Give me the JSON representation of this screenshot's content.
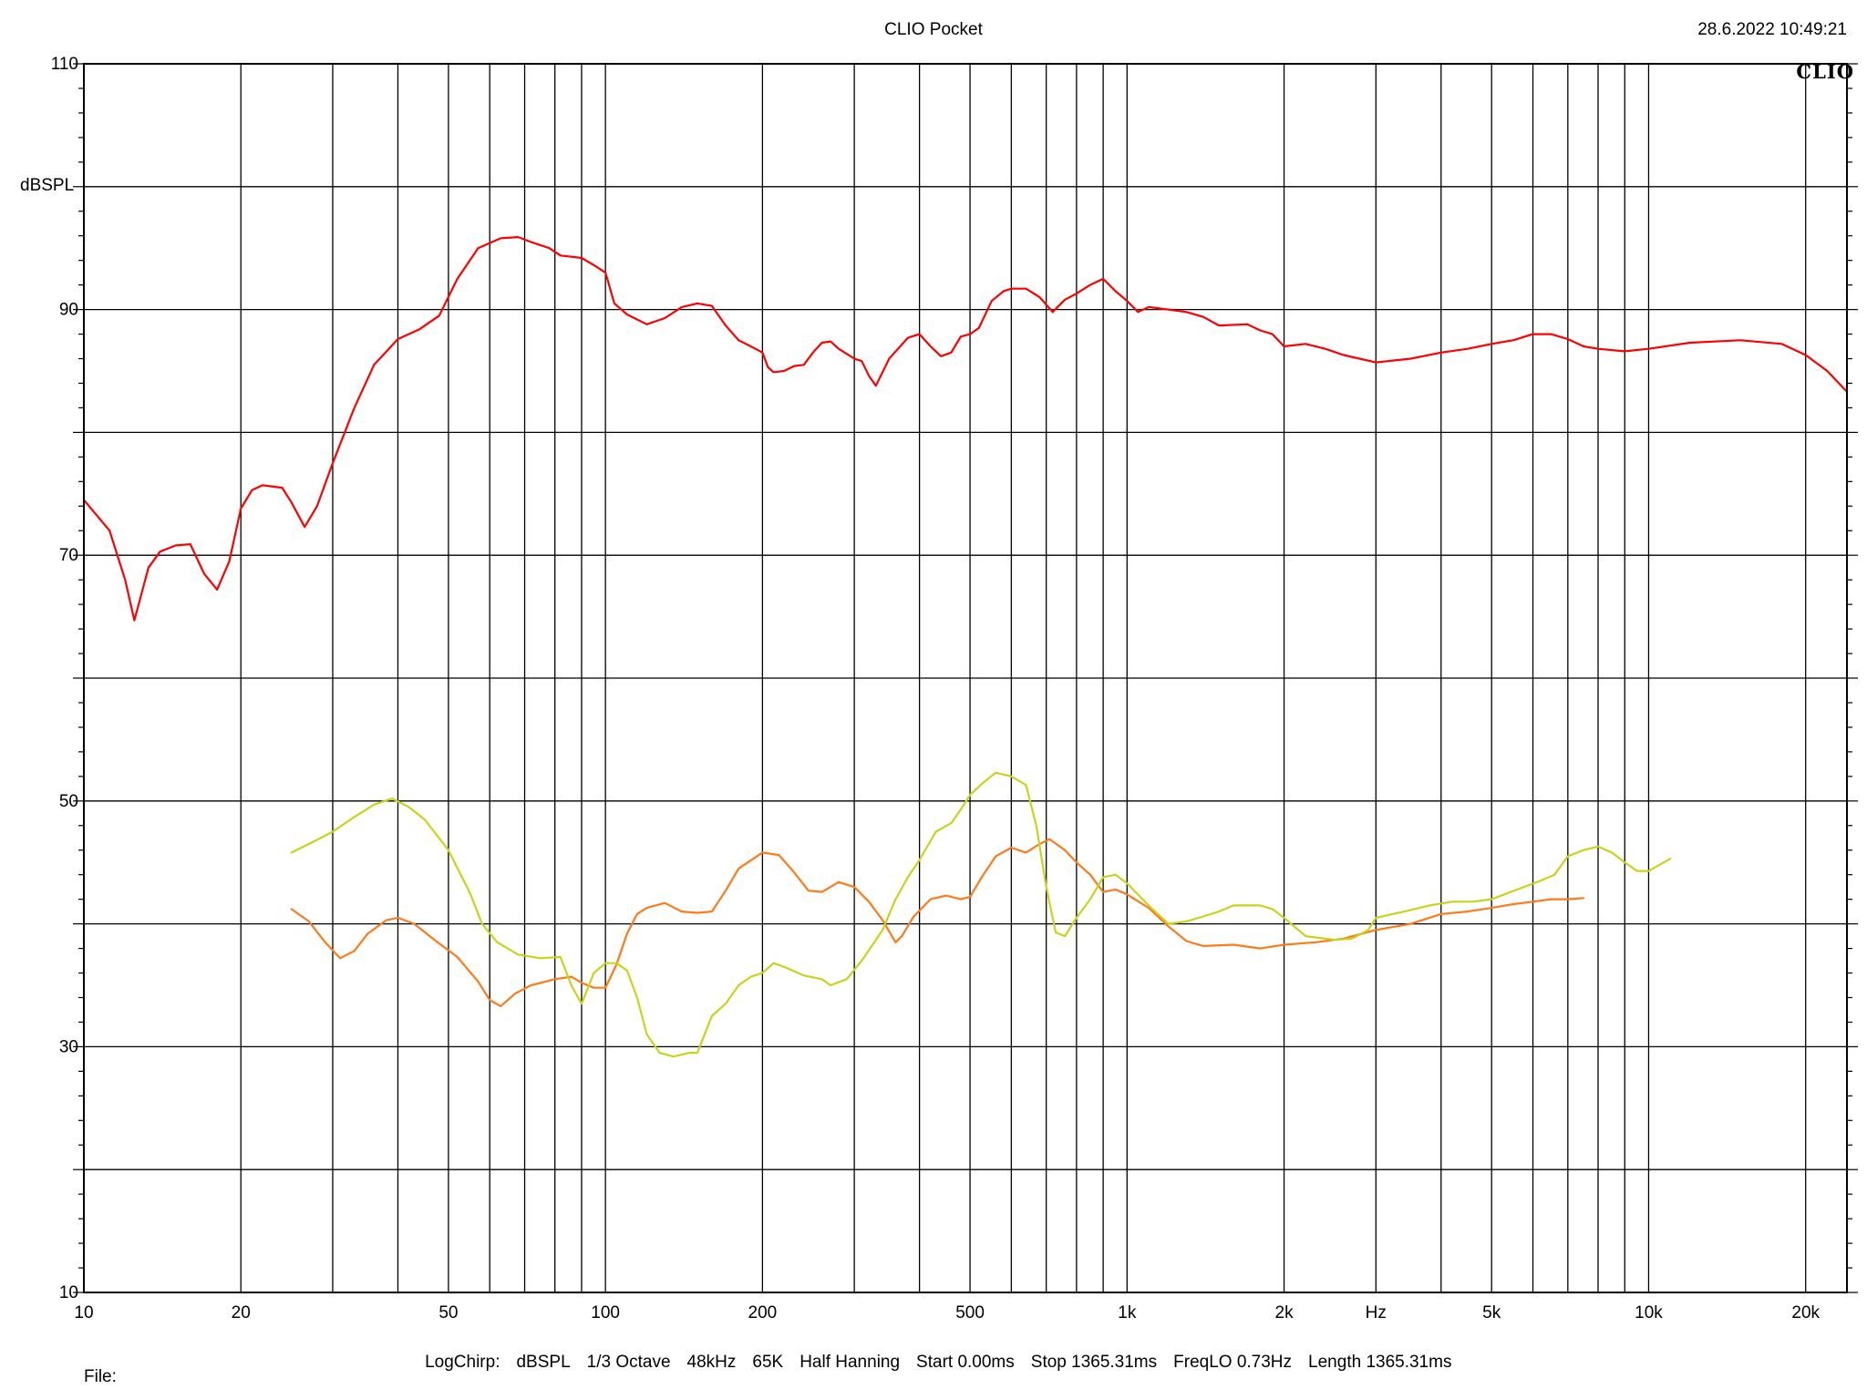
{
  "header": {
    "title": "CLIO Pocket",
    "timestamp": "28.6.2022 10:49:21",
    "brand": "CLIO"
  },
  "footer": {
    "items": [
      "LogChirp:",
      "dBSPL",
      "1/3 Octave",
      "48kHz",
      "65K",
      "Half Hanning",
      "Start 0.00ms",
      "Stop 1365.31ms",
      "FreqLO 0.73Hz",
      "Length 1365.31ms"
    ],
    "file_label": "File:"
  },
  "chart_data": {
    "type": "line",
    "title": "CLIO Pocket",
    "xlabel": "Hz",
    "ylabel": "dBSPL",
    "x_scale": "log",
    "xlim": [
      10,
      24000
    ],
    "ylim": [
      10,
      110
    ],
    "grid": true,
    "x_ticks": [
      {
        "value": 10,
        "label": "10"
      },
      {
        "value": 20,
        "label": "20"
      },
      {
        "value": 50,
        "label": "50"
      },
      {
        "value": 100,
        "label": "100"
      },
      {
        "value": 200,
        "label": "200"
      },
      {
        "value": 500,
        "label": "500"
      },
      {
        "value": 1000,
        "label": "1k"
      },
      {
        "value": 2000,
        "label": "2k"
      },
      {
        "value": 5000,
        "label": "5k"
      },
      {
        "value": 10000,
        "label": "10k"
      },
      {
        "value": 20000,
        "label": "20k"
      }
    ],
    "y_ticks": [
      {
        "value": 10,
        "label": "10"
      },
      {
        "value": 30,
        "label": "30"
      },
      {
        "value": 50,
        "label": "50"
      },
      {
        "value": 70,
        "label": "70"
      },
      {
        "value": 90,
        "label": "90"
      },
      {
        "value": 110,
        "label": "110"
      }
    ],
    "series": [
      {
        "color": "#ff0000",
        "points": [
          [
            10,
            74.5
          ],
          [
            11.2,
            72
          ],
          [
            12,
            68
          ],
          [
            12.5,
            64.7
          ],
          [
            13.3,
            69
          ],
          [
            14,
            70.3
          ],
          [
            15,
            70.8
          ],
          [
            16,
            70.9
          ],
          [
            17,
            68.5
          ],
          [
            18,
            67.2
          ],
          [
            19,
            69.5
          ],
          [
            20,
            73.8
          ],
          [
            21,
            75.3
          ],
          [
            22,
            75.7
          ],
          [
            24,
            75.5
          ],
          [
            25,
            74.3
          ],
          [
            26.5,
            72.3
          ],
          [
            28,
            74
          ],
          [
            30,
            77.5
          ],
          [
            33,
            82
          ],
          [
            36,
            85.5
          ],
          [
            40,
            87.6
          ],
          [
            44,
            88.4
          ],
          [
            48,
            89.5
          ],
          [
            52,
            92.5
          ],
          [
            57,
            95
          ],
          [
            63,
            95.8
          ],
          [
            68,
            95.9
          ],
          [
            72,
            95.5
          ],
          [
            78,
            95
          ],
          [
            82,
            94.4
          ],
          [
            90,
            94.2
          ],
          [
            96,
            93.5
          ],
          [
            100,
            93
          ],
          [
            104,
            90.5
          ],
          [
            110,
            89.6
          ],
          [
            120,
            88.8
          ],
          [
            130,
            89.3
          ],
          [
            140,
            90.2
          ],
          [
            150,
            90.5
          ],
          [
            160,
            90.3
          ],
          [
            170,
            88.7
          ],
          [
            180,
            87.5
          ],
          [
            190,
            87
          ],
          [
            200,
            86.5
          ],
          [
            205,
            85.3
          ],
          [
            210,
            84.9
          ],
          [
            220,
            85
          ],
          [
            230,
            85.4
          ],
          [
            240,
            85.5
          ],
          [
            250,
            86.5
          ],
          [
            260,
            87.3
          ],
          [
            270,
            87.4
          ],
          [
            280,
            86.8
          ],
          [
            300,
            86
          ],
          [
            310,
            85.8
          ],
          [
            320,
            84.6
          ],
          [
            330,
            83.8
          ],
          [
            350,
            86
          ],
          [
            380,
            87.7
          ],
          [
            400,
            88
          ],
          [
            420,
            87
          ],
          [
            440,
            86.2
          ],
          [
            460,
            86.5
          ],
          [
            480,
            87.8
          ],
          [
            500,
            88
          ],
          [
            520,
            88.5
          ],
          [
            550,
            90.7
          ],
          [
            580,
            91.5
          ],
          [
            600,
            91.7
          ],
          [
            640,
            91.7
          ],
          [
            680,
            91
          ],
          [
            720,
            89.8
          ],
          [
            760,
            90.8
          ],
          [
            800,
            91.3
          ],
          [
            850,
            92
          ],
          [
            900,
            92.5
          ],
          [
            950,
            91.5
          ],
          [
            1000,
            90.7
          ],
          [
            1050,
            89.8
          ],
          [
            1100,
            90.2
          ],
          [
            1200,
            90
          ],
          [
            1300,
            89.8
          ],
          [
            1400,
            89.4
          ],
          [
            1500,
            88.7
          ],
          [
            1700,
            88.8
          ],
          [
            1800,
            88.3
          ],
          [
            1900,
            88
          ],
          [
            2000,
            87
          ],
          [
            2200,
            87.2
          ],
          [
            2400,
            86.8
          ],
          [
            2600,
            86.3
          ],
          [
            3000,
            85.7
          ],
          [
            3500,
            86
          ],
          [
            4000,
            86.5
          ],
          [
            4500,
            86.8
          ],
          [
            5000,
            87.2
          ],
          [
            5500,
            87.5
          ],
          [
            6000,
            88
          ],
          [
            6500,
            88
          ],
          [
            7000,
            87.6
          ],
          [
            7500,
            87
          ],
          [
            8000,
            86.8
          ],
          [
            9000,
            86.6
          ],
          [
            10000,
            86.8
          ],
          [
            12000,
            87.3
          ],
          [
            15000,
            87.5
          ],
          [
            18000,
            87.2
          ],
          [
            20000,
            86.3
          ],
          [
            22000,
            85
          ],
          [
            24000,
            83.3
          ]
        ]
      },
      {
        "color": "#ff7a1a",
        "points": [
          [
            25,
            41.2
          ],
          [
            27,
            40.2
          ],
          [
            29,
            38.5
          ],
          [
            31,
            37.2
          ],
          [
            33,
            37.8
          ],
          [
            35,
            39.2
          ],
          [
            38,
            40.3
          ],
          [
            40,
            40.5
          ],
          [
            43,
            40
          ],
          [
            47,
            38.7
          ],
          [
            52,
            37.3
          ],
          [
            57,
            35.3
          ],
          [
            60,
            33.8
          ],
          [
            63,
            33.3
          ],
          [
            67,
            34.3
          ],
          [
            72,
            35
          ],
          [
            80,
            35.5
          ],
          [
            86,
            35.7
          ],
          [
            90,
            35.2
          ],
          [
            95,
            34.8
          ],
          [
            100,
            34.8
          ],
          [
            105,
            36.7
          ],
          [
            110,
            39.2
          ],
          [
            115,
            40.8
          ],
          [
            120,
            41.3
          ],
          [
            130,
            41.7
          ],
          [
            140,
            41
          ],
          [
            150,
            40.9
          ],
          [
            160,
            41
          ],
          [
            170,
            42.7
          ],
          [
            180,
            44.5
          ],
          [
            200,
            45.8
          ],
          [
            215,
            45.6
          ],
          [
            230,
            44.2
          ],
          [
            245,
            42.7
          ],
          [
            260,
            42.6
          ],
          [
            280,
            43.4
          ],
          [
            300,
            43
          ],
          [
            320,
            41.8
          ],
          [
            340,
            40.3
          ],
          [
            360,
            38.5
          ],
          [
            370,
            39
          ],
          [
            390,
            40.6
          ],
          [
            420,
            42
          ],
          [
            450,
            42.3
          ],
          [
            480,
            42
          ],
          [
            500,
            42.2
          ],
          [
            530,
            44
          ],
          [
            560,
            45.5
          ],
          [
            600,
            46.2
          ],
          [
            640,
            45.8
          ],
          [
            680,
            46.5
          ],
          [
            710,
            46.9
          ],
          [
            760,
            46
          ],
          [
            800,
            45
          ],
          [
            850,
            44
          ],
          [
            900,
            42.6
          ],
          [
            950,
            42.8
          ],
          [
            1000,
            42.4
          ],
          [
            1100,
            41.3
          ],
          [
            1200,
            39.8
          ],
          [
            1300,
            38.6
          ],
          [
            1400,
            38.2
          ],
          [
            1600,
            38.3
          ],
          [
            1800,
            38
          ],
          [
            2000,
            38.3
          ],
          [
            2300,
            38.5
          ],
          [
            2600,
            38.8
          ],
          [
            3000,
            39.5
          ],
          [
            3500,
            40
          ],
          [
            4000,
            40.8
          ],
          [
            4500,
            41
          ],
          [
            5000,
            41.3
          ],
          [
            5500,
            41.6
          ],
          [
            6000,
            41.8
          ],
          [
            6500,
            42
          ],
          [
            7000,
            42
          ],
          [
            7500,
            42.1
          ]
        ]
      },
      {
        "color": "#c8d41a",
        "points": [
          [
            25,
            45.8
          ],
          [
            27,
            46.5
          ],
          [
            30,
            47.5
          ],
          [
            33,
            48.7
          ],
          [
            36,
            49.7
          ],
          [
            39,
            50.2
          ],
          [
            42,
            49.5
          ],
          [
            45,
            48.5
          ],
          [
            50,
            46
          ],
          [
            55,
            42.5
          ],
          [
            58,
            40
          ],
          [
            62,
            38.5
          ],
          [
            68,
            37.5
          ],
          [
            75,
            37.2
          ],
          [
            82,
            37.3
          ],
          [
            86,
            35
          ],
          [
            90,
            33.5
          ],
          [
            95,
            36
          ],
          [
            100,
            36.8
          ],
          [
            105,
            36.8
          ],
          [
            110,
            36.2
          ],
          [
            115,
            34
          ],
          [
            120,
            31
          ],
          [
            127,
            29.5
          ],
          [
            135,
            29.2
          ],
          [
            145,
            29.5
          ],
          [
            150,
            29.5
          ],
          [
            160,
            32.5
          ],
          [
            170,
            33.5
          ],
          [
            180,
            35
          ],
          [
            190,
            35.7
          ],
          [
            200,
            36
          ],
          [
            210,
            36.8
          ],
          [
            220,
            36.5
          ],
          [
            240,
            35.8
          ],
          [
            260,
            35.5
          ],
          [
            270,
            35
          ],
          [
            290,
            35.5
          ],
          [
            310,
            37
          ],
          [
            340,
            39.5
          ],
          [
            360,
            42
          ],
          [
            380,
            43.8
          ],
          [
            400,
            45.2
          ],
          [
            430,
            47.5
          ],
          [
            460,
            48.2
          ],
          [
            480,
            49.3
          ],
          [
            500,
            50.5
          ],
          [
            530,
            51.5
          ],
          [
            560,
            52.3
          ],
          [
            600,
            52
          ],
          [
            640,
            51.3
          ],
          [
            670,
            48
          ],
          [
            700,
            43
          ],
          [
            730,
            39.3
          ],
          [
            760,
            39
          ],
          [
            800,
            40.5
          ],
          [
            850,
            42
          ],
          [
            900,
            43.8
          ],
          [
            950,
            44
          ],
          [
            1000,
            43.3
          ],
          [
            1100,
            41.5
          ],
          [
            1200,
            40
          ],
          [
            1300,
            40.2
          ],
          [
            1400,
            40.6
          ],
          [
            1500,
            41
          ],
          [
            1600,
            41.5
          ],
          [
            1800,
            41.5
          ],
          [
            1900,
            41.2
          ],
          [
            2000,
            40.5
          ],
          [
            2200,
            39
          ],
          [
            2500,
            38.7
          ],
          [
            2700,
            38.8
          ],
          [
            2900,
            39.5
          ],
          [
            3000,
            40.5
          ],
          [
            3400,
            41
          ],
          [
            3800,
            41.5
          ],
          [
            4200,
            41.8
          ],
          [
            4600,
            41.8
          ],
          [
            5000,
            42
          ],
          [
            5600,
            42.8
          ],
          [
            6200,
            43.5
          ],
          [
            6600,
            44
          ],
          [
            7000,
            45.5
          ],
          [
            7500,
            46
          ],
          [
            8000,
            46.3
          ],
          [
            8500,
            45.8
          ],
          [
            9000,
            45
          ],
          [
            9500,
            44.3
          ],
          [
            10000,
            44.3
          ],
          [
            11000,
            45.3
          ]
        ]
      }
    ]
  }
}
